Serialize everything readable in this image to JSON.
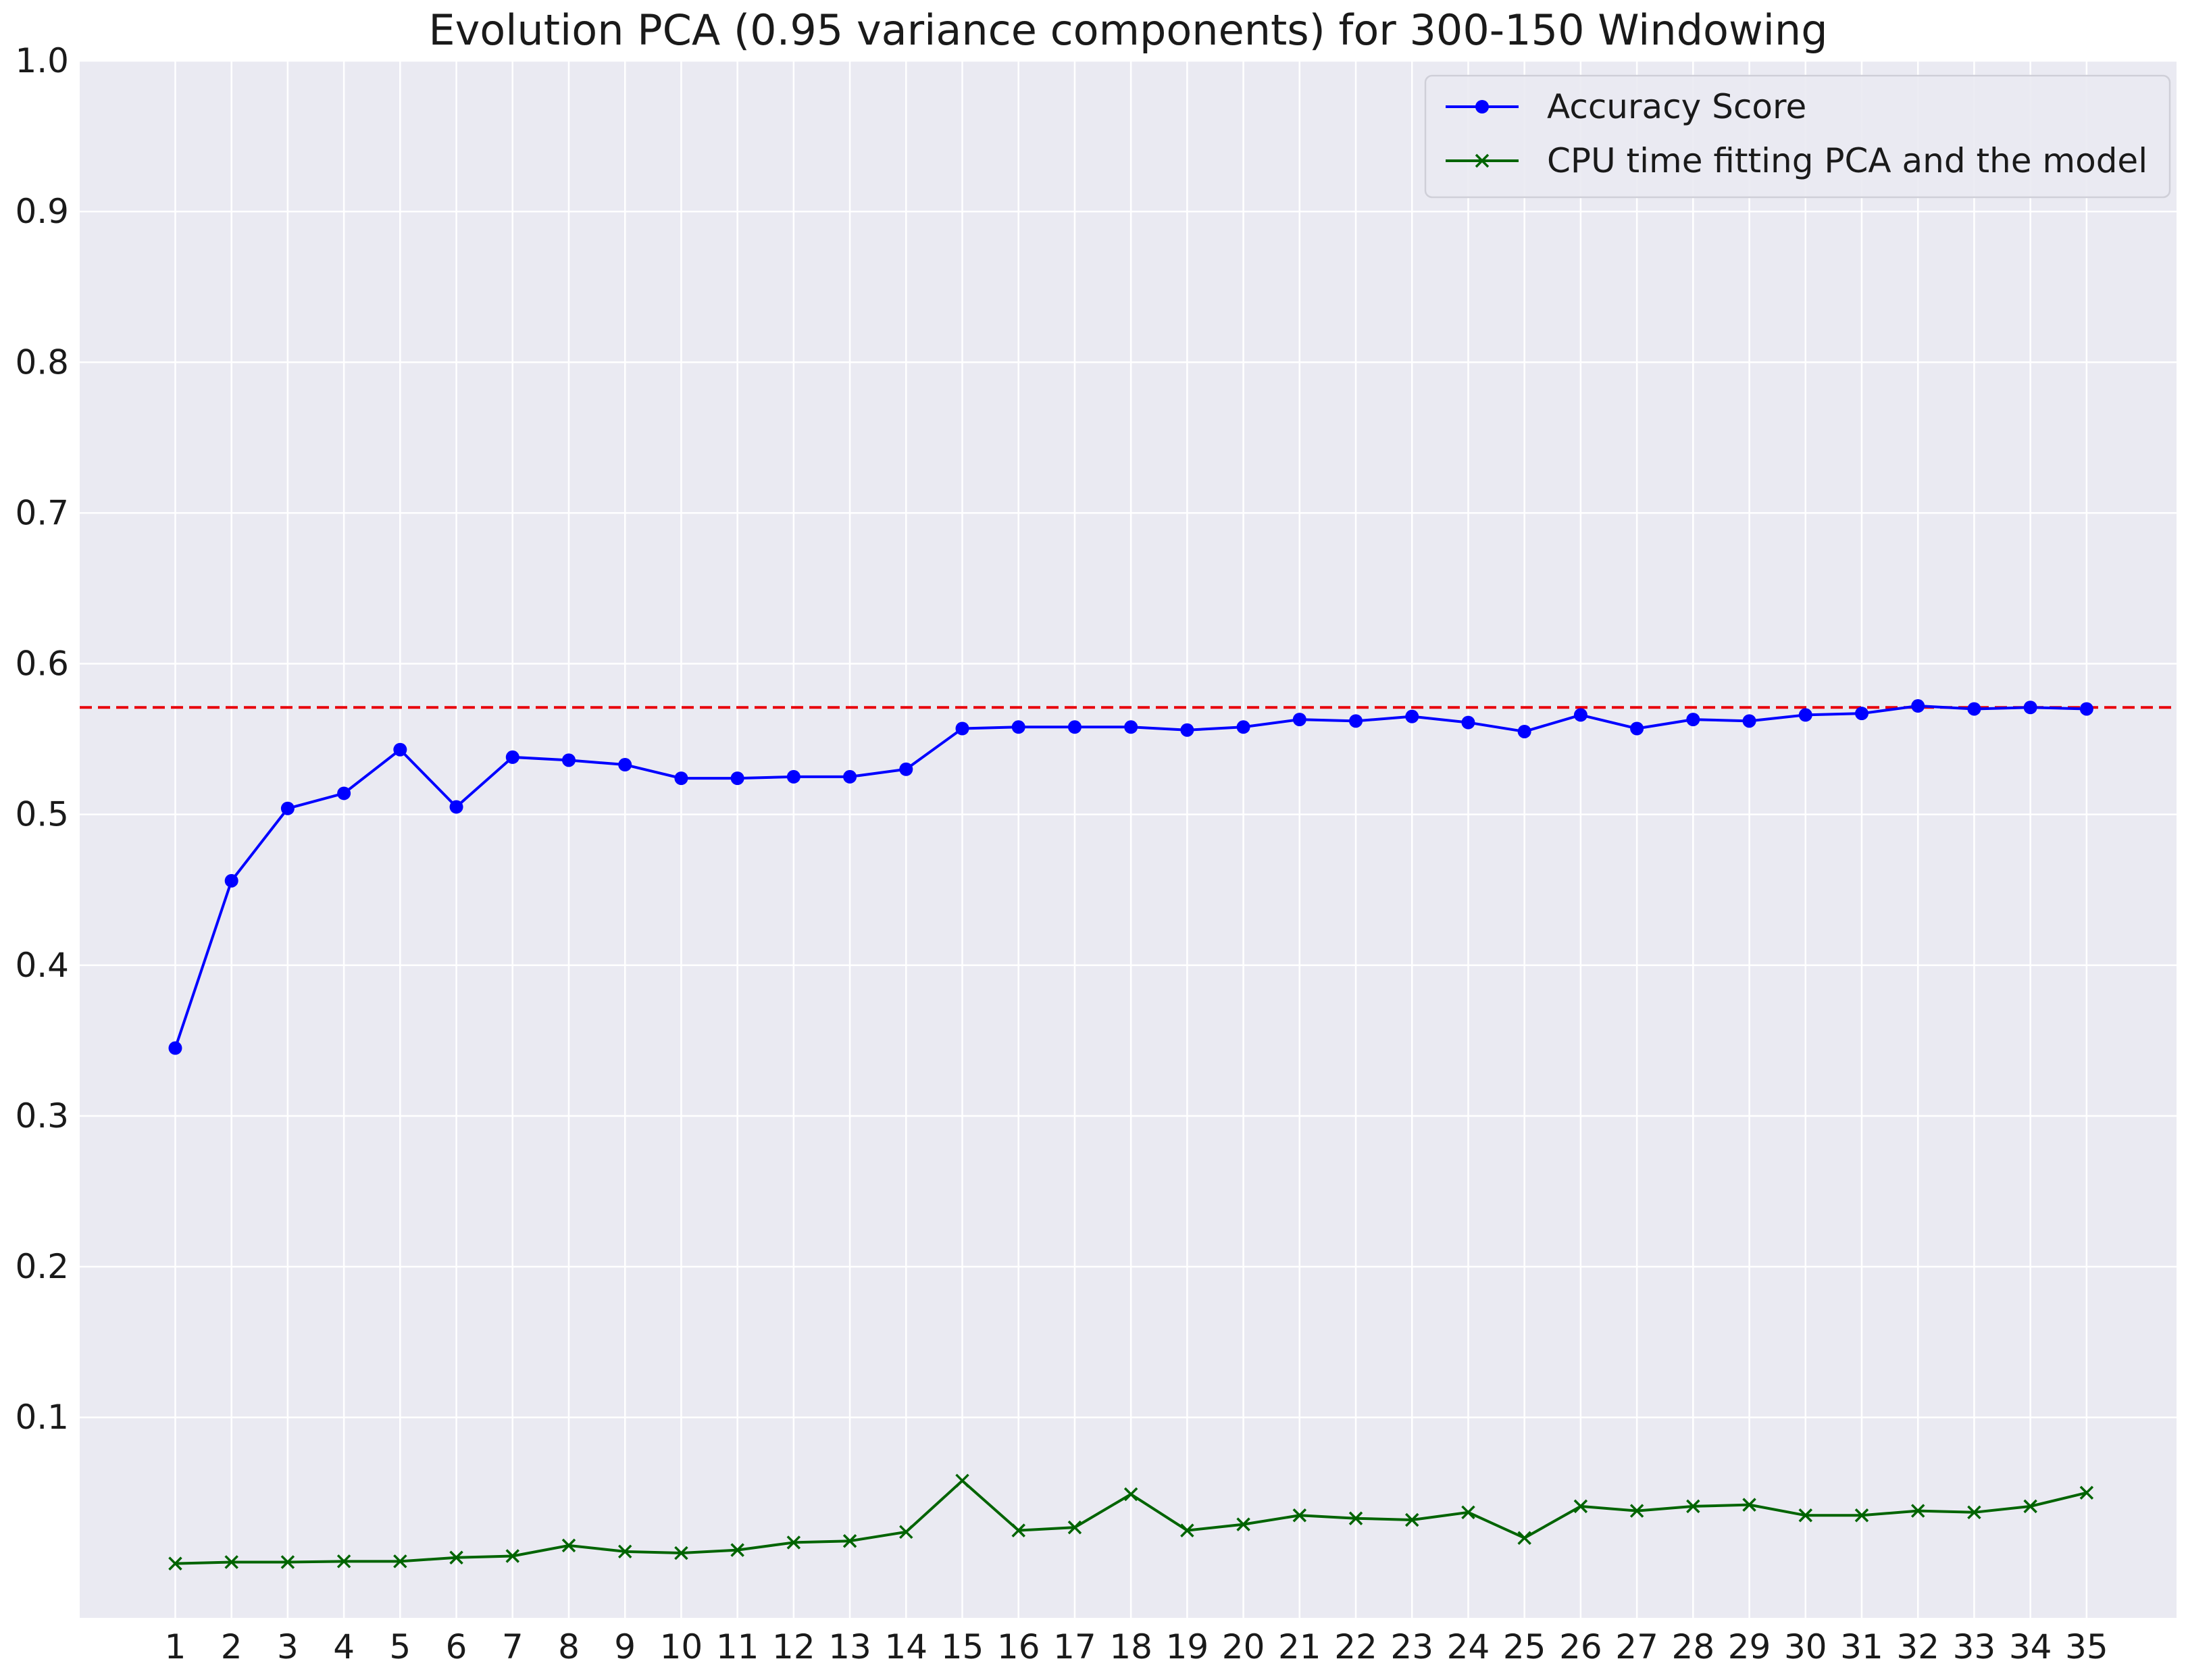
{
  "chart_data": {
    "type": "line",
    "title": "Evolution PCA (0.95 variance components) for 300-150 Windowing",
    "xlabel": "",
    "ylabel": "",
    "x": [
      1,
      2,
      3,
      4,
      5,
      6,
      7,
      8,
      9,
      10,
      11,
      12,
      13,
      14,
      15,
      16,
      17,
      18,
      19,
      20,
      21,
      22,
      23,
      24,
      25,
      26,
      27,
      28,
      29,
      30,
      31,
      32,
      33,
      34,
      35
    ],
    "x_tick_labels": [
      "1",
      "2",
      "3",
      "4",
      "5",
      "6",
      "7",
      "8",
      "9",
      "10",
      "11",
      "12",
      "13",
      "14",
      "15",
      "16",
      "17",
      "18",
      "19",
      "20",
      "21",
      "22",
      "23",
      "24",
      "25",
      "26",
      "27",
      "28",
      "29",
      "30",
      "31",
      "32",
      "33",
      "34",
      "35"
    ],
    "ylim": [
      -0.033,
      1.0
    ],
    "xlim": [
      -0.7,
      36.6
    ],
    "y_ticks": [
      0.1,
      0.2,
      0.3,
      0.4,
      0.5,
      0.6,
      0.7,
      0.8,
      0.9,
      1.0
    ],
    "y_tick_labels": [
      "0.1",
      "0.2",
      "0.3",
      "0.4",
      "0.5",
      "0.6",
      "0.7",
      "0.8",
      "0.9",
      "1.0"
    ],
    "grid": true,
    "legend_position": "top-right",
    "background": "#eaeaf2",
    "reference_line": {
      "y": 0.571,
      "color": "#e8000b",
      "style": "dashed"
    },
    "series": [
      {
        "name": "Accuracy Score",
        "color": "#0000ff",
        "marker": "circle",
        "values": [
          0.345,
          0.456,
          0.504,
          0.514,
          0.543,
          0.505,
          0.538,
          0.536,
          0.533,
          0.524,
          0.524,
          0.525,
          0.525,
          0.53,
          0.557,
          0.558,
          0.558,
          0.558,
          0.556,
          0.558,
          0.563,
          0.562,
          0.565,
          0.561,
          0.555,
          0.566,
          0.557,
          0.563,
          0.562,
          0.566,
          0.567,
          0.572,
          0.57,
          0.571,
          0.57
        ]
      },
      {
        "name": "CPU time fitting PCA and the model",
        "color": "#006400",
        "marker": "x",
        "values": [
          0.003,
          0.004,
          0.004,
          0.0045,
          0.0045,
          0.007,
          0.008,
          0.015,
          0.011,
          0.01,
          0.012,
          0.017,
          0.018,
          0.024,
          0.058,
          0.025,
          0.027,
          0.049,
          0.025,
          0.029,
          0.035,
          0.033,
          0.032,
          0.037,
          0.02,
          0.041,
          0.038,
          0.041,
          0.042,
          0.035,
          0.035,
          0.038,
          0.037,
          0.041,
          0.05
        ]
      }
    ]
  }
}
